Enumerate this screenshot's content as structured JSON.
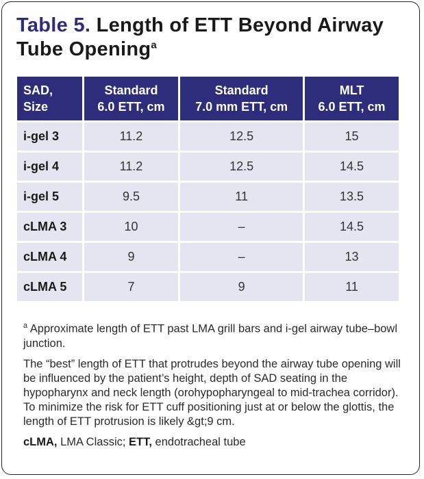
{
  "title": {
    "label": "Table 5.",
    "text": " Length of ETT Beyond Airway Tube Opening",
    "superscript": "a"
  },
  "table": {
    "headers": [
      [
        "SAD,",
        "Size"
      ],
      [
        "Standard",
        "6.0 ETT, cm"
      ],
      [
        "Standard",
        "7.0 mm ETT, cm"
      ],
      [
        "MLT",
        "6.0 ETT, cm"
      ]
    ],
    "rows": [
      [
        "i-gel 3",
        "11.2",
        "12.5",
        "15"
      ],
      [
        "i-gel 4",
        "11.2",
        "12.5",
        "14.5"
      ],
      [
        "i-gel 5",
        "9.5",
        "11",
        "13.5"
      ],
      [
        "cLMA 3",
        "10",
        "–",
        "14.5"
      ],
      [
        "cLMA 4",
        "9",
        "–",
        "13"
      ],
      [
        "cLMA 5",
        "7",
        "9",
        "11"
      ]
    ]
  },
  "footnotes": {
    "a_marker": "a",
    "a_text": " Approximate length of ETT past LMA grill bars and i-gel airway tube–bowl junction.",
    "body": "The “best” length of ETT that protrudes beyond the airway tube opening will be influenced by the patient’s height, depth of SAD seating in the hypopharynx and neck length (orohypopharyngeal to mid-trachea corridor). To minimize the risk for ETT cuff positioning just at or below the glottis, the length of ETT protrusion is likely &gt;9 cm.",
    "abbr1_term": "cLMA,",
    "abbr1_def": " LMA Classic; ",
    "abbr2_term": "ETT,",
    "abbr2_def": " endotracheal tube"
  },
  "colors": {
    "header_bg": "#2e2d7c",
    "cell_bg": "#e4e5f1",
    "title_accent": "#2e2d7c"
  }
}
